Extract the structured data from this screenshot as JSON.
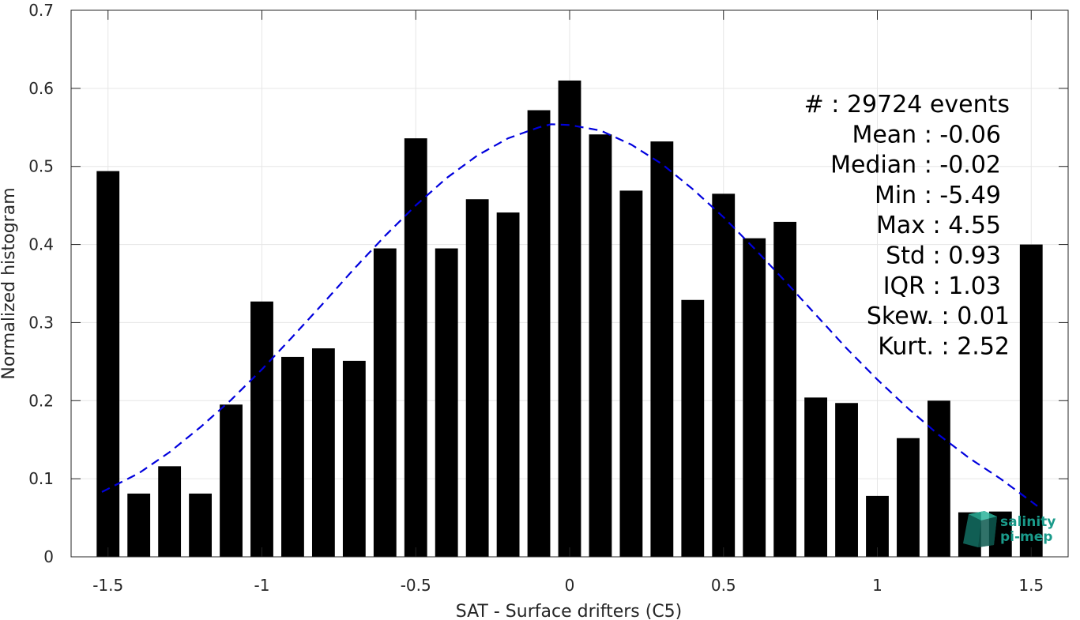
{
  "chart_data": {
    "type": "bar",
    "xlabel": "SAT - Surface drifters (C5)",
    "ylabel": "Normalized histogram",
    "xlim": [
      -1.62,
      1.62
    ],
    "ylim": [
      0,
      0.7
    ],
    "xticks": [
      -1.5,
      -1,
      -0.5,
      0,
      0.5,
      1,
      1.5
    ],
    "xtick_labels": [
      "-1.5",
      "-1",
      "-0.5",
      "0",
      "0.5",
      "1",
      "1.5"
    ],
    "yticks": [
      0,
      0.1,
      0.2,
      0.3,
      0.4,
      0.5,
      0.6,
      0.7
    ],
    "ytick_labels": [
      "0",
      "0.1",
      "0.2",
      "0.3",
      "0.4",
      "0.5",
      "0.6",
      "0.7"
    ],
    "grid": true,
    "bar_color": "#000000",
    "bin_width": 0.1,
    "x": [
      -1.5,
      -1.4,
      -1.3,
      -1.2,
      -1.1,
      -1.0,
      -0.9,
      -0.8,
      -0.7,
      -0.6,
      -0.5,
      -0.4,
      -0.3,
      -0.2,
      -0.1,
      0.0,
      0.1,
      0.2,
      0.3,
      0.4,
      0.5,
      0.6,
      0.7,
      0.8,
      0.9,
      1.0,
      1.1,
      1.2,
      1.3,
      1.4,
      1.5
    ],
    "values": [
      0.494,
      0.081,
      0.116,
      0.081,
      0.195,
      0.327,
      0.256,
      0.267,
      0.251,
      0.395,
      0.536,
      0.395,
      0.458,
      0.441,
      0.572,
      0.61,
      0.541,
      0.469,
      0.532,
      0.329,
      0.465,
      0.408,
      0.429,
      0.204,
      0.197,
      0.078,
      0.152,
      0.2,
      0.057,
      0.058,
      0.4
    ],
    "fit_curve": {
      "style": "dashed",
      "color": "#0000dd",
      "x": [
        -1.52,
        -1.4,
        -1.3,
        -1.2,
        -1.1,
        -1.0,
        -0.9,
        -0.8,
        -0.7,
        -0.6,
        -0.5,
        -0.4,
        -0.3,
        -0.2,
        -0.1,
        -0.06,
        0.0,
        0.1,
        0.2,
        0.3,
        0.4,
        0.5,
        0.6,
        0.7,
        0.8,
        0.9,
        1.0,
        1.1,
        1.2,
        1.3,
        1.4,
        1.52
      ],
      "y": [
        0.083,
        0.107,
        0.134,
        0.166,
        0.201,
        0.24,
        0.282,
        0.325,
        0.369,
        0.411,
        0.45,
        0.485,
        0.514,
        0.536,
        0.55,
        0.554,
        0.553,
        0.546,
        0.528,
        0.503,
        0.471,
        0.435,
        0.395,
        0.353,
        0.31,
        0.267,
        0.227,
        0.19,
        0.156,
        0.126,
        0.1,
        0.065
      ]
    }
  },
  "stats": [
    "#  : 29724 events",
    "Mean : -0.06",
    "Median : -0.02",
    "Min : -5.49",
    "Max : 4.55",
    "Std : 0.93",
    "IQR : 1.03",
    "Skew. : 0.01",
    "Kurt. : 2.52"
  ],
  "logo": {
    "line1": "salinity",
    "line2": "pi-mep",
    "color": "#1a9a8a",
    "icon": "cube-logo-icon"
  },
  "colors": {
    "axis": "#262626",
    "grid": "#e6e6e6",
    "fit": "#0000dd"
  }
}
